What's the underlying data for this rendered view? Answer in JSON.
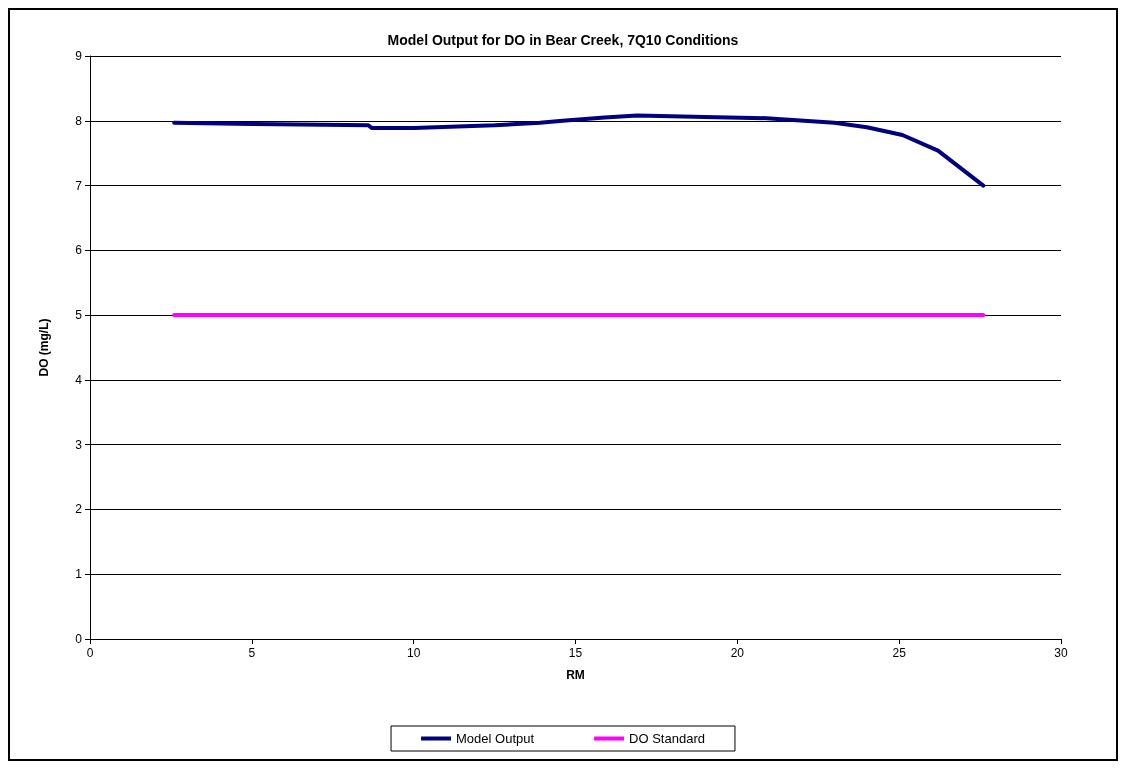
{
  "chart_data": {
    "type": "line",
    "title": "Model Output for DO in Bear Creek, 7Q10 Conditions",
    "xlabel": "RM",
    "ylabel": "DO (mg/L)",
    "xlim": [
      0,
      30
    ],
    "xticks": [
      0,
      5,
      10,
      15,
      20,
      25,
      30
    ],
    "ylim": [
      0,
      9
    ],
    "yticks": [
      0,
      1,
      2,
      3,
      4,
      5,
      6,
      7,
      8,
      9
    ],
    "grid": "y",
    "legend": "bottom",
    "marker": "none",
    "line_style": "solid",
    "series": [
      {
        "name": "Model Output",
        "color": "#000080",
        "x": [
          2.6,
          5,
          8.6,
          8.7,
          10,
          12.5,
          13.9,
          14.6,
          15.9,
          16.9,
          19,
          20.9,
          23.0,
          24,
          25.1,
          26.2,
          26.9,
          27.6
        ],
        "values": [
          7.97,
          7.95,
          7.93,
          7.89,
          7.89,
          7.93,
          7.97,
          8.0,
          8.05,
          8.08,
          8.06,
          8.04,
          7.97,
          7.9,
          7.78,
          7.54,
          7.27,
          7.0
        ]
      },
      {
        "name": "DO Standard",
        "color": "#ff00ff",
        "x": [
          2.6,
          27.6
        ],
        "values": [
          5,
          5
        ]
      }
    ]
  }
}
